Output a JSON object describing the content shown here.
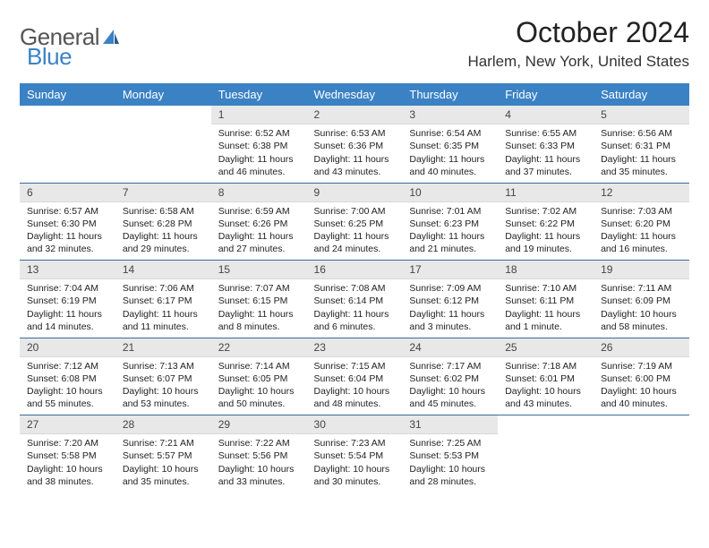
{
  "logo": {
    "text1": "General",
    "text2": "Blue"
  },
  "title": "October 2024",
  "location": "Harlem, New York, United States",
  "day_headers": [
    "Sunday",
    "Monday",
    "Tuesday",
    "Wednesday",
    "Thursday",
    "Friday",
    "Saturday"
  ],
  "colors": {
    "header_bg": "#3b82c4",
    "header_text": "#ffffff",
    "daynum_bg": "#e8e8e8",
    "sep": "#3b6a9a",
    "logo_gray": "#555555",
    "logo_blue": "#3b82c4"
  },
  "weeks": [
    [
      null,
      null,
      {
        "n": "1",
        "sr": "6:52 AM",
        "ss": "6:38 PM",
        "dl": "11 hours and 46 minutes."
      },
      {
        "n": "2",
        "sr": "6:53 AM",
        "ss": "6:36 PM",
        "dl": "11 hours and 43 minutes."
      },
      {
        "n": "3",
        "sr": "6:54 AM",
        "ss": "6:35 PM",
        "dl": "11 hours and 40 minutes."
      },
      {
        "n": "4",
        "sr": "6:55 AM",
        "ss": "6:33 PM",
        "dl": "11 hours and 37 minutes."
      },
      {
        "n": "5",
        "sr": "6:56 AM",
        "ss": "6:31 PM",
        "dl": "11 hours and 35 minutes."
      }
    ],
    [
      {
        "n": "6",
        "sr": "6:57 AM",
        "ss": "6:30 PM",
        "dl": "11 hours and 32 minutes."
      },
      {
        "n": "7",
        "sr": "6:58 AM",
        "ss": "6:28 PM",
        "dl": "11 hours and 29 minutes."
      },
      {
        "n": "8",
        "sr": "6:59 AM",
        "ss": "6:26 PM",
        "dl": "11 hours and 27 minutes."
      },
      {
        "n": "9",
        "sr": "7:00 AM",
        "ss": "6:25 PM",
        "dl": "11 hours and 24 minutes."
      },
      {
        "n": "10",
        "sr": "7:01 AM",
        "ss": "6:23 PM",
        "dl": "11 hours and 21 minutes."
      },
      {
        "n": "11",
        "sr": "7:02 AM",
        "ss": "6:22 PM",
        "dl": "11 hours and 19 minutes."
      },
      {
        "n": "12",
        "sr": "7:03 AM",
        "ss": "6:20 PM",
        "dl": "11 hours and 16 minutes."
      }
    ],
    [
      {
        "n": "13",
        "sr": "7:04 AM",
        "ss": "6:19 PM",
        "dl": "11 hours and 14 minutes."
      },
      {
        "n": "14",
        "sr": "7:06 AM",
        "ss": "6:17 PM",
        "dl": "11 hours and 11 minutes."
      },
      {
        "n": "15",
        "sr": "7:07 AM",
        "ss": "6:15 PM",
        "dl": "11 hours and 8 minutes."
      },
      {
        "n": "16",
        "sr": "7:08 AM",
        "ss": "6:14 PM",
        "dl": "11 hours and 6 minutes."
      },
      {
        "n": "17",
        "sr": "7:09 AM",
        "ss": "6:12 PM",
        "dl": "11 hours and 3 minutes."
      },
      {
        "n": "18",
        "sr": "7:10 AM",
        "ss": "6:11 PM",
        "dl": "11 hours and 1 minute."
      },
      {
        "n": "19",
        "sr": "7:11 AM",
        "ss": "6:09 PM",
        "dl": "10 hours and 58 minutes."
      }
    ],
    [
      {
        "n": "20",
        "sr": "7:12 AM",
        "ss": "6:08 PM",
        "dl": "10 hours and 55 minutes."
      },
      {
        "n": "21",
        "sr": "7:13 AM",
        "ss": "6:07 PM",
        "dl": "10 hours and 53 minutes."
      },
      {
        "n": "22",
        "sr": "7:14 AM",
        "ss": "6:05 PM",
        "dl": "10 hours and 50 minutes."
      },
      {
        "n": "23",
        "sr": "7:15 AM",
        "ss": "6:04 PM",
        "dl": "10 hours and 48 minutes."
      },
      {
        "n": "24",
        "sr": "7:17 AM",
        "ss": "6:02 PM",
        "dl": "10 hours and 45 minutes."
      },
      {
        "n": "25",
        "sr": "7:18 AM",
        "ss": "6:01 PM",
        "dl": "10 hours and 43 minutes."
      },
      {
        "n": "26",
        "sr": "7:19 AM",
        "ss": "6:00 PM",
        "dl": "10 hours and 40 minutes."
      }
    ],
    [
      {
        "n": "27",
        "sr": "7:20 AM",
        "ss": "5:58 PM",
        "dl": "10 hours and 38 minutes."
      },
      {
        "n": "28",
        "sr": "7:21 AM",
        "ss": "5:57 PM",
        "dl": "10 hours and 35 minutes."
      },
      {
        "n": "29",
        "sr": "7:22 AM",
        "ss": "5:56 PM",
        "dl": "10 hours and 33 minutes."
      },
      {
        "n": "30",
        "sr": "7:23 AM",
        "ss": "5:54 PM",
        "dl": "10 hours and 30 minutes."
      },
      {
        "n": "31",
        "sr": "7:25 AM",
        "ss": "5:53 PM",
        "dl": "10 hours and 28 minutes."
      },
      null,
      null
    ]
  ],
  "labels": {
    "sunrise": "Sunrise:",
    "sunset": "Sunset:",
    "daylight": "Daylight:"
  }
}
